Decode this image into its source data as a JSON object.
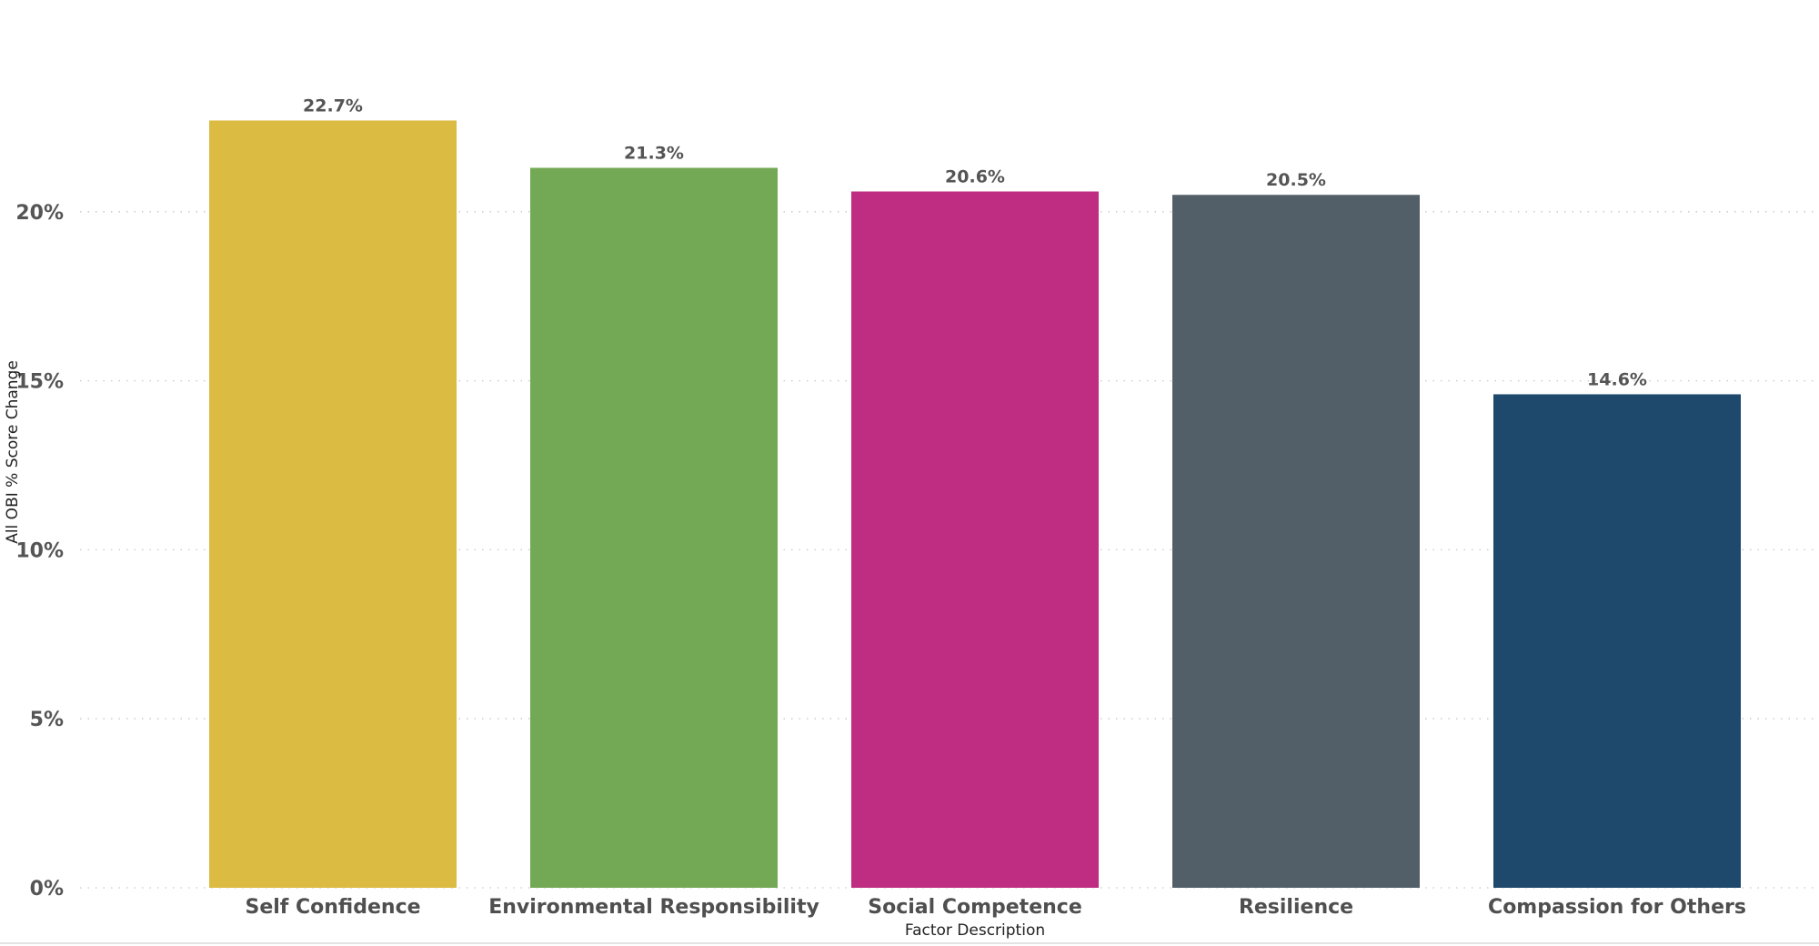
{
  "chart_data": {
    "type": "bar",
    "categories": [
      "Self Confidence",
      "Environmental Responsibility",
      "Social Competence",
      "Resilience",
      "Compassion for Others"
    ],
    "values": [
      22.7,
      21.3,
      20.6,
      20.5,
      14.6
    ],
    "data_labels": [
      "22.7%",
      "21.3%",
      "20.6%",
      "20.5%",
      "14.6%"
    ],
    "colors": [
      "#dbbb42",
      "#73a955",
      "#bf2d82",
      "#525f69",
      "#1f496c"
    ],
    "xlabel": "Factor Description",
    "ylabel": "All OBI % Score Change",
    "ylim": [
      0,
      25
    ],
    "yticks": [
      0,
      5,
      10,
      15,
      20
    ],
    "ytick_labels": [
      "0%",
      "5%",
      "10%",
      "15%",
      "20%"
    ],
    "grid": true,
    "legend": "none"
  }
}
